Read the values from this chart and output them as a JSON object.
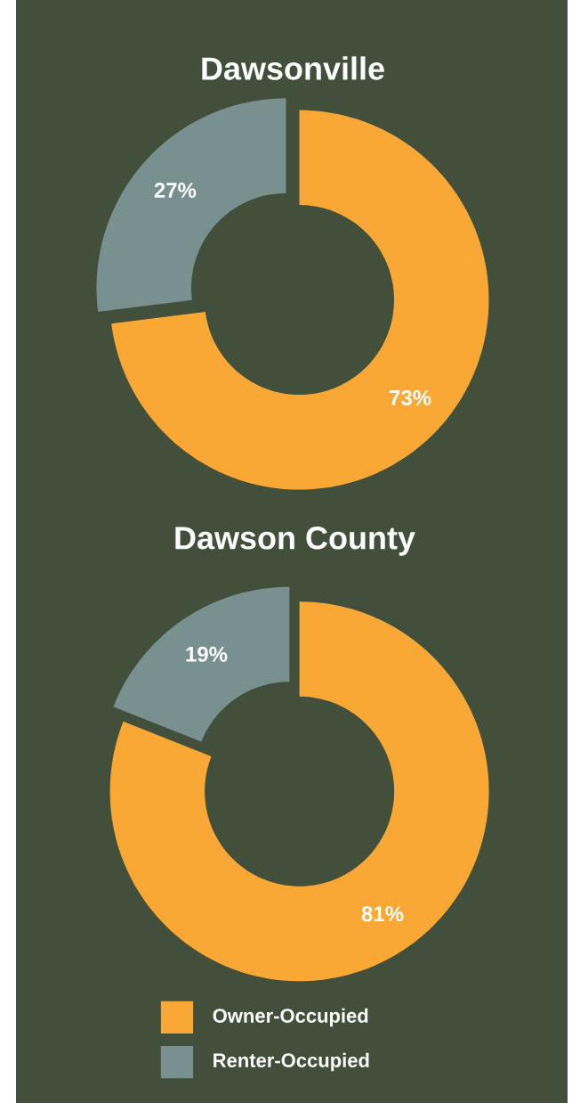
{
  "chart_data": [
    {
      "type": "donut",
      "title": "Dawsonville",
      "categories": [
        null,
        null
      ],
      "values": [
        73,
        27
      ],
      "value_labels": [
        "73%",
        "27%"
      ],
      "colors": [
        "#f9a836",
        "#78908f"
      ]
    },
    {
      "type": "donut",
      "title": "Dawson County",
      "categories": [
        "Owner-Occupied",
        "Renter-Occupied"
      ],
      "values": [
        81,
        19
      ],
      "value_labels": [
        "81%",
        "19%"
      ],
      "colors": [
        "#f9a836",
        "#78908f"
      ],
      "legend": "bottom"
    }
  ]
}
